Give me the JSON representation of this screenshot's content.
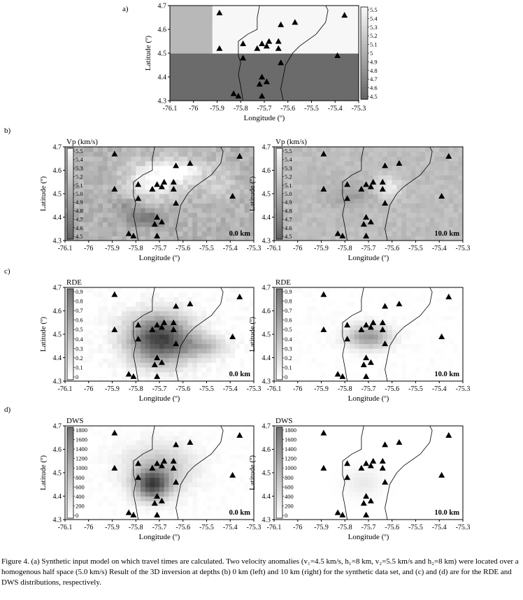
{
  "figure": {
    "caption": "Figure 4. (a) Synthetic input model on which travel times are calculated. Two velocity anomalies (v₁=4.5 km/s, h₁=8 km, v₂=5.5 km/s and h₂=8 km) were located over a homogenous half space (5.0 km/s) Result of the 3D inversion at depths (b) 0 km (left) and 10 km (right) for the synthetic data set, and (c) and (d) are for the RDE and DWS distributions, respectively."
  },
  "chart_data": [
    {
      "id": "a",
      "type": "heatmap",
      "panel_label": "a)",
      "xlabel": "Longitude (º)",
      "ylabel": "Latitude (º)",
      "xlim": [
        -76.1,
        -75.3
      ],
      "ylim": [
        4.3,
        4.7
      ],
      "xticks": [
        "-76.1",
        "-76",
        "-75.9",
        "-75.8",
        "-75.7",
        "-75.6",
        "-75.5",
        "-75.4",
        "-75.3"
      ],
      "yticks": [
        "4.3",
        "4.4",
        "4.5",
        "4.6",
        "4.7"
      ],
      "field": "vp",
      "colorbar_ticks": [
        "5.5",
        "5.4",
        "5.3",
        "5.2",
        "5.1",
        "5",
        "4.9",
        "4.8",
        "4.7",
        "4.6",
        "4.5"
      ],
      "colorbar_range": [
        4.5,
        5.5
      ],
      "grid": false
    },
    {
      "id": "b0",
      "type": "heatmap",
      "panel_label": "b)",
      "title": "Vp (km/s)",
      "depth_label": "0.0 km",
      "xlabel": "Longitude (º)",
      "ylabel": "Latitude (º)",
      "xlim": [
        -76.1,
        -75.3
      ],
      "ylim": [
        4.3,
        4.7
      ],
      "xticks": [
        "-76.1",
        "-76",
        "-75.9",
        "-75.8",
        "-75.7",
        "-75.6",
        "-75.5",
        "-75.4",
        "-75.3"
      ],
      "yticks": [
        "4.3",
        "4.4",
        "4.5",
        "4.6",
        "4.7"
      ],
      "field": "vp",
      "colorbar_ticks": [
        "5.5",
        "5.4",
        "5.3",
        "5.2",
        "5.1",
        "5.0",
        "4.9",
        "4.8",
        "4.7",
        "4.6",
        "4.5"
      ],
      "colorbar_range": [
        4.5,
        5.5
      ],
      "grid": false
    },
    {
      "id": "b10",
      "type": "heatmap",
      "title": "Vp (km/s)",
      "depth_label": "10.0 km",
      "xlabel": "Longitude (º)",
      "ylabel": "Latitude (º)",
      "xlim": [
        -76.1,
        -75.3
      ],
      "ylim": [
        4.3,
        4.7
      ],
      "xticks": [
        "-76.1",
        "-76",
        "-75.9",
        "-75.8",
        "-75.7",
        "-75.6",
        "-75.5",
        "-75.4",
        "-75.3"
      ],
      "yticks": [
        "4.3",
        "4.4",
        "4.5",
        "4.6",
        "4.7"
      ],
      "field": "vp",
      "colorbar_ticks": [
        "5.5",
        "5.4",
        "5.3",
        "5.2",
        "5.1",
        "5.0",
        "4.9",
        "4.8",
        "4.7",
        "4.6",
        "4.5"
      ],
      "colorbar_range": [
        4.5,
        5.5
      ],
      "grid": false
    },
    {
      "id": "c0",
      "type": "heatmap",
      "panel_label": "c)",
      "title": "RDE",
      "depth_label": "0.0 km",
      "xlabel": "Longitude (º)",
      "ylabel": "Latitude (º)",
      "xlim": [
        -76.1,
        -75.3
      ],
      "ylim": [
        4.3,
        4.7
      ],
      "xticks": [
        "-76.1",
        "-76",
        "-75.9",
        "-75.8",
        "-75.7",
        "-75.6",
        "-75.5",
        "-75.4",
        "-75.3"
      ],
      "yticks": [
        "4.3",
        "4.4",
        "4.5",
        "4.6",
        "4.7"
      ],
      "field": "rde",
      "colorbar_ticks": [
        "0.9",
        "0.8",
        "0.7",
        "0.6",
        "0.5",
        "0.4",
        "0.3",
        "0.2",
        "0.1",
        "0"
      ],
      "colorbar_range": [
        0,
        0.9
      ],
      "grid": false
    },
    {
      "id": "c10",
      "type": "heatmap",
      "title": "RDE",
      "depth_label": "10.0 km",
      "xlabel": "Longitude (º)",
      "ylabel": "Latitude (º)",
      "xlim": [
        -76.1,
        -75.3
      ],
      "ylim": [
        4.3,
        4.7
      ],
      "xticks": [
        "-76.1",
        "-76",
        "-75.9",
        "-75.8",
        "-75.7",
        "-75.6",
        "-75.5",
        "-75.4",
        "-75.3"
      ],
      "yticks": [
        "4.3",
        "4.4",
        "4.5",
        "4.6",
        "4.7"
      ],
      "field": "rde",
      "colorbar_ticks": [
        "0.9",
        "0.8",
        "0.7",
        "0.6",
        "0.5",
        "0.4",
        "0.3",
        "0.2",
        "0.1",
        "0"
      ],
      "colorbar_range": [
        0,
        0.9
      ],
      "grid": false
    },
    {
      "id": "d0",
      "type": "heatmap",
      "panel_label": "d)",
      "title": "DWS",
      "depth_label": "0.0 km",
      "xlabel": "Longitude (º)",
      "ylabel": "Latitude (º)",
      "xlim": [
        -76.1,
        -75.3
      ],
      "ylim": [
        4.3,
        4.7
      ],
      "xticks": [
        "-76.1",
        "-76",
        "-75.9",
        "-75.8",
        "-75.7",
        "-75.6",
        "-75.5",
        "-75.4",
        "-75.3"
      ],
      "yticks": [
        "4.3",
        "4.4",
        "4.5",
        "4.6",
        "4.7"
      ],
      "field": "dws",
      "colorbar_ticks": [
        "1800",
        "1600",
        "1400",
        "1200",
        "1000",
        "800",
        "600",
        "400",
        "200",
        "0"
      ],
      "colorbar_range": [
        0,
        1800
      ],
      "grid": false
    },
    {
      "id": "d10",
      "type": "heatmap",
      "title": "DWS",
      "depth_label": "10.0 km",
      "xlabel": "Longitude (º)",
      "ylabel": "Latitude (º)",
      "xlim": [
        -76.1,
        -75.3
      ],
      "ylim": [
        4.3,
        4.7
      ],
      "xticks": [
        "-76.1",
        "-76",
        "-75.9",
        "-75.8",
        "-75.7",
        "-75.6",
        "-75.5",
        "-75.4",
        "-75.3"
      ],
      "yticks": [
        "4.3",
        "4.4",
        "4.5",
        "4.6",
        "4.7"
      ],
      "field": "dws",
      "colorbar_ticks": [
        "1800",
        "1600",
        "1400",
        "1200",
        "1000",
        "800",
        "600",
        "400",
        "200",
        "0"
      ],
      "colorbar_range": [
        0,
        1800
      ],
      "grid": false
    }
  ],
  "stations": [
    {
      "lon": -75.89,
      "lat": 4.67
    },
    {
      "lon": -75.89,
      "lat": 4.52
    },
    {
      "lon": -75.79,
      "lat": 4.54
    },
    {
      "lon": -75.79,
      "lat": 4.48
    },
    {
      "lon": -75.73,
      "lat": 4.52
    },
    {
      "lon": -75.71,
      "lat": 4.54
    },
    {
      "lon": -75.69,
      "lat": 4.53
    },
    {
      "lon": -75.68,
      "lat": 4.55
    },
    {
      "lon": -75.64,
      "lat": 4.55
    },
    {
      "lon": -75.64,
      "lat": 4.52
    },
    {
      "lon": -75.63,
      "lat": 4.62
    },
    {
      "lon": -75.63,
      "lat": 4.46
    },
    {
      "lon": -75.57,
      "lat": 4.63
    },
    {
      "lon": -75.71,
      "lat": 4.4
    },
    {
      "lon": -75.69,
      "lat": 4.38
    },
    {
      "lon": -75.72,
      "lat": 4.37
    },
    {
      "lon": -75.71,
      "lat": 4.32
    },
    {
      "lon": -75.83,
      "lat": 4.33
    },
    {
      "lon": -75.81,
      "lat": 4.32
    },
    {
      "lon": -75.39,
      "lat": 4.49
    },
    {
      "lon": -75.36,
      "lat": 4.66
    }
  ],
  "coastline": [
    [
      -75.79,
      4.3
    ],
    [
      -75.8,
      4.36
    ],
    [
      -75.81,
      4.41
    ],
    [
      -75.8,
      4.46
    ],
    [
      -75.81,
      4.49
    ],
    [
      -75.81,
      4.52
    ],
    [
      -75.81,
      4.55
    ],
    [
      -75.77,
      4.58
    ],
    [
      -75.73,
      4.6
    ],
    [
      -75.73,
      4.65
    ],
    [
      -75.72,
      4.7
    ]
  ],
  "coastline2": [
    [
      -75.62,
      4.3
    ],
    [
      -75.63,
      4.35
    ],
    [
      -75.62,
      4.4
    ],
    [
      -75.61,
      4.45
    ],
    [
      -75.58,
      4.5
    ],
    [
      -75.55,
      4.53
    ],
    [
      -75.48,
      4.58
    ],
    [
      -75.44,
      4.63
    ],
    [
      -75.43,
      4.68
    ],
    [
      -75.44,
      4.7
    ]
  ]
}
